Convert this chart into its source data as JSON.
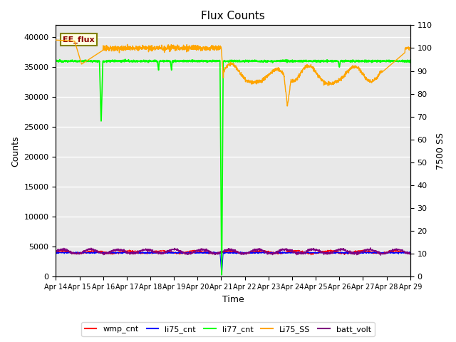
{
  "title": "Flux Counts",
  "xlabel": "Time",
  "ylabel_left": "Counts",
  "ylabel_right": "7500 SS",
  "annotation_text": "EE_flux",
  "x_tick_labels": [
    "Apr 14",
    "Apr 15",
    "Apr 16",
    "Apr 17",
    "Apr 18",
    "Apr 19",
    "Apr 20",
    "Apr 21",
    "Apr 22",
    "Apr 23",
    "Apr 24",
    "Apr 25",
    "Apr 26",
    "Apr 27",
    "Apr 28",
    "Apr 29"
  ],
  "ylim_left": [
    0,
    42000
  ],
  "ylim_right": [
    0,
    110
  ],
  "plot_bg_color": "#e8e8e8",
  "legend_labels": [
    "wmp_cnt",
    "li75_cnt",
    "li77_cnt",
    "Li75_SS",
    "batt_volt"
  ],
  "legend_colors": [
    "red",
    "blue",
    "lime",
    "orange",
    "purple"
  ],
  "yticks_left": [
    0,
    5000,
    10000,
    15000,
    20000,
    25000,
    30000,
    35000,
    40000
  ],
  "yticks_right": [
    0,
    10,
    20,
    30,
    40,
    50,
    60,
    70,
    80,
    90,
    100,
    110
  ]
}
